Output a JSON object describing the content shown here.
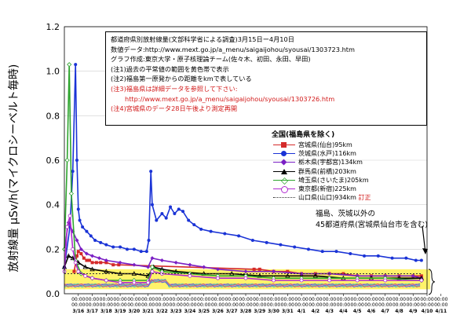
{
  "chart_data": {
    "type": "line",
    "ylabel": "放射線量 μSv/h(マイクロシーベルト毎時)",
    "ylim": [
      0,
      1.2
    ],
    "y_ticks": [
      "0.0",
      "0.2",
      "0.4",
      "0.6",
      "0.8",
      "1.0",
      "1.2"
    ],
    "x_ticks": [
      {
        "time": "00:00",
        "date": "3/16"
      },
      {
        "time": "00:00",
        "date": "3/17"
      },
      {
        "time": "00:00",
        "date": "3/18"
      },
      {
        "time": "00:00",
        "date": "3/19"
      },
      {
        "time": "00:00",
        "date": "3/20"
      },
      {
        "time": "00:00",
        "date": "3/21"
      },
      {
        "time": "00:00",
        "date": "3/22"
      },
      {
        "time": "00:00",
        "date": "3/23"
      },
      {
        "time": "00:00",
        "date": "3/24"
      },
      {
        "time": "00:00",
        "date": "3/25"
      },
      {
        "time": "00:00",
        "date": "3/26"
      },
      {
        "time": "00:00",
        "date": "3/27"
      },
      {
        "time": "00:00",
        "date": "3/28"
      },
      {
        "time": "00:00",
        "date": "3/29"
      },
      {
        "time": "00:00",
        "date": "3/30"
      },
      {
        "time": "00:00",
        "date": "3/31"
      },
      {
        "time": "00:00",
        "date": "4/1"
      },
      {
        "time": "00:00",
        "date": "4/2"
      },
      {
        "time": "00:00",
        "date": "4/3"
      },
      {
        "time": "00:00",
        "date": "4/4"
      },
      {
        "time": "00:00",
        "date": "4/5"
      },
      {
        "time": "00:00",
        "date": "4/6"
      },
      {
        "time": "00:00",
        "date": "4/7"
      },
      {
        "time": "00:00",
        "date": "4/8"
      },
      {
        "time": "00:00",
        "date": "4/9"
      },
      {
        "time": "00:00",
        "date": "4/10"
      },
      {
        "time": "00:00",
        "date": "4/11"
      }
    ],
    "x_range_days": [
      15,
      41
    ],
    "normal_range_band": [
      0.02,
      0.11
    ],
    "normal_range_color": "#fff36a",
    "notes": {
      "title": "都道府県別放射線量(文部科学省による調査)3月15日ー4月10日",
      "source": "数値データ:http://www.mext.go.jp/a_menu/saigaijohou/syousai/1303723.htm",
      "author": "グラフ作成:東京大学・原子核理論チーム(佐々木、初田、永田、早田)",
      "note1": "(注1)過去の平常値の範囲を黄色帯で表示",
      "note2": "(注2)福島第一原発からの距離をkmで表している",
      "note3": "(注3)福島県は詳細データを参照して下さい:",
      "note3_url": "http://www.mext.go.jp/a_menu/saigaijohou/syousai/1303726.htm",
      "note4": "(注4)宮城県のデータ28日午後より測定再開"
    },
    "legend_title": "全国(福島県を除く)",
    "legend_position": "right",
    "others_label": [
      "福島、茨城以外の",
      "45都道府県(宮城県仙台市を含む)"
    ],
    "series": [
      {
        "name": "宮城県(仙台)95km",
        "color": "#d42a2a",
        "marker": "square",
        "x": [
          15.7,
          15.9,
          16.0,
          16.2,
          16.4,
          16.6,
          16.8,
          17.0,
          17.3,
          17.6,
          18.0,
          18.5,
          18.9,
          28.6,
          29.0,
          30.0,
          31.0,
          32.0,
          33.0,
          34.0,
          35.0,
          36.0,
          37.0,
          38.0,
          39.0,
          40.0,
          40.6
        ],
        "y": [
          0.1,
          0.17,
          0.19,
          0.18,
          0.16,
          0.15,
          0.15,
          0.14,
          0.14,
          0.14,
          0.14,
          0.13,
          0.13,
          0.11,
          0.11,
          0.1,
          0.1,
          0.09,
          0.09,
          0.09,
          0.09,
          0.08,
          0.08,
          0.08,
          0.08,
          0.08,
          0.08
        ]
      },
      {
        "name": "茨城県(水戸)116km",
        "color": "#1a33d6",
        "marker": "circle",
        "x": [
          15.0,
          15.4,
          15.6,
          15.8,
          15.9,
          16.0,
          16.1,
          16.3,
          16.6,
          16.9,
          17.2,
          17.6,
          18.0,
          18.5,
          19.0,
          19.5,
          20.0,
          20.5,
          20.9,
          21.05,
          21.2,
          21.3,
          21.6,
          22.0,
          22.3,
          22.6,
          22.9,
          23.2,
          23.5,
          23.9,
          24.3,
          24.8,
          25.5,
          26.5,
          27.5,
          28.5,
          29.5,
          30.5,
          31.5,
          32.5,
          33.5,
          34.5,
          35.5,
          36.5,
          37.5,
          38.5,
          39.5,
          40.2,
          40.6
        ],
        "y": [
          0.12,
          0.3,
          0.55,
          1.03,
          0.6,
          0.38,
          0.33,
          0.3,
          0.28,
          0.26,
          0.24,
          0.23,
          0.22,
          0.21,
          0.21,
          0.2,
          0.2,
          0.19,
          0.19,
          0.24,
          0.55,
          0.4,
          0.33,
          0.36,
          0.34,
          0.39,
          0.36,
          0.38,
          0.37,
          0.33,
          0.31,
          0.29,
          0.28,
          0.27,
          0.26,
          0.24,
          0.23,
          0.22,
          0.21,
          0.2,
          0.19,
          0.19,
          0.18,
          0.17,
          0.17,
          0.16,
          0.16,
          0.15,
          0.15
        ]
      },
      {
        "name": "栃木県(宇都宮)134km",
        "color": "#7a1fc4",
        "marker": "diamond",
        "x": [
          15.0,
          15.3,
          15.6,
          15.9,
          16.2,
          16.6,
          17.0,
          17.5,
          18.0,
          19.0,
          20.0,
          21.0,
          21.3,
          22.0,
          23.0,
          24.0,
          25.0,
          26.0,
          28.0,
          30.0,
          32.0,
          34.0,
          36.0,
          38.0,
          40.0,
          40.6
        ],
        "y": [
          0.2,
          0.32,
          0.28,
          0.24,
          0.2,
          0.18,
          0.17,
          0.16,
          0.15,
          0.14,
          0.13,
          0.12,
          0.16,
          0.15,
          0.14,
          0.13,
          0.12,
          0.11,
          0.1,
          0.1,
          0.09,
          0.09,
          0.08,
          0.08,
          0.08,
          0.07
        ]
      },
      {
        "name": "群馬県(前橋)203km",
        "color": "#000000",
        "marker": "triangle",
        "x": [
          15.0,
          15.3,
          15.6,
          16.0,
          16.5,
          17.0,
          18.0,
          19.0,
          20.0,
          21.0,
          21.4,
          22.0,
          23.0,
          25.0,
          27.0,
          29.0,
          31.0,
          33.0,
          35.0,
          37.0,
          39.0,
          40.6
        ],
        "y": [
          0.12,
          0.17,
          0.16,
          0.14,
          0.12,
          0.11,
          0.1,
          0.09,
          0.09,
          0.08,
          0.12,
          0.11,
          0.1,
          0.09,
          0.09,
          0.08,
          0.08,
          0.08,
          0.07,
          0.07,
          0.07,
          0.07
        ]
      },
      {
        "name": "埼玉県(さいたま)205km",
        "color": "#2ea52e",
        "marker": "diamond-open",
        "x": [
          15.0,
          15.2,
          15.35,
          15.5,
          15.8,
          16.2,
          17.0,
          18.0,
          19.0,
          20.0,
          21.0,
          21.3,
          22.0,
          24.0,
          26.0,
          28.0,
          30.0,
          32.0,
          34.0,
          36.0,
          38.0,
          40.6
        ],
        "y": [
          0.2,
          0.6,
          1.03,
          0.45,
          0.15,
          0.09,
          0.07,
          0.06,
          0.06,
          0.06,
          0.06,
          0.12,
          0.1,
          0.09,
          0.08,
          0.08,
          0.07,
          0.07,
          0.07,
          0.07,
          0.07,
          0.06
        ]
      },
      {
        "name": "東京都(新宿)225km",
        "color": "#b02ad0",
        "marker": "circle-open",
        "x": [
          15.0,
          15.2,
          15.4,
          15.6,
          15.8,
          16.0,
          16.5,
          17.0,
          18.0,
          19.0,
          20.0,
          21.0,
          21.3,
          22.0,
          24.0,
          26.0,
          28.0,
          30.0,
          32.0,
          34.0,
          36.0,
          38.0,
          40.6
        ],
        "y": [
          0.1,
          0.3,
          0.35,
          0.2,
          0.14,
          0.1,
          0.08,
          0.07,
          0.06,
          0.05,
          0.05,
          0.05,
          0.1,
          0.09,
          0.08,
          0.07,
          0.07,
          0.06,
          0.06,
          0.06,
          0.06,
          0.06,
          0.06
        ]
      },
      {
        "name": "山口県(山口)934km",
        "note": "訂正",
        "color": "#333333",
        "marker": "dot",
        "x": [
          15.0,
          20.0,
          25.0,
          30.0,
          35.0,
          40.6
        ],
        "y": [
          0.09,
          0.09,
          0.09,
          0.09,
          0.09,
          0.09
        ]
      }
    ]
  }
}
